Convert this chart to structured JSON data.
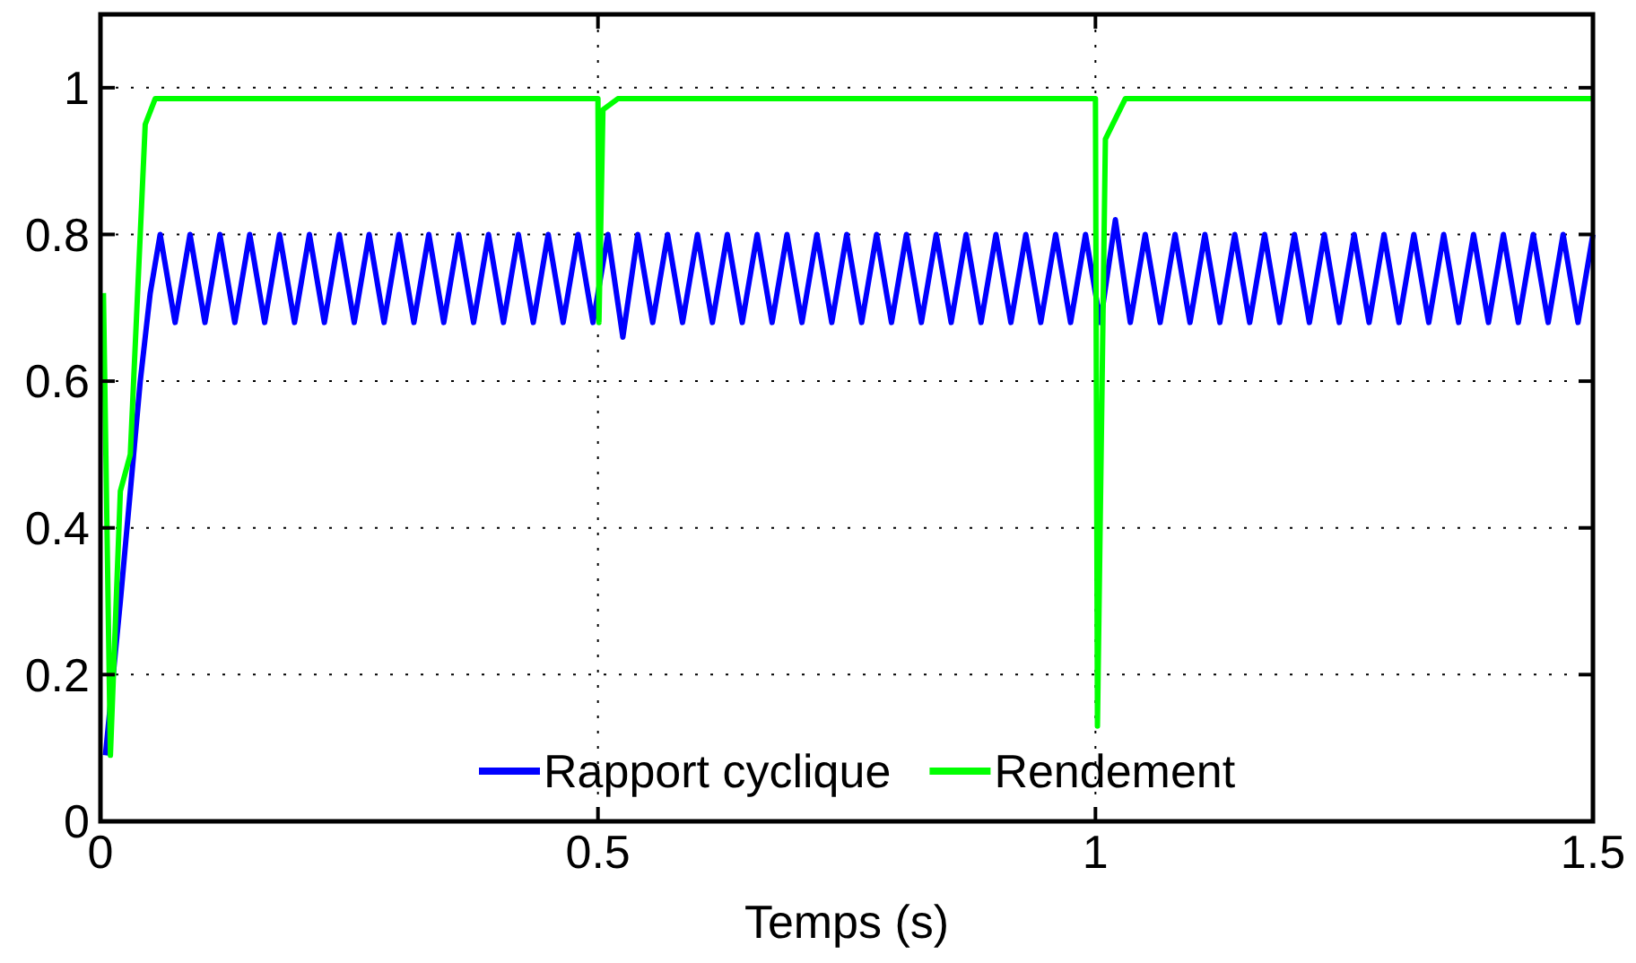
{
  "chart_data": {
    "type": "line",
    "xlabel": "Temps (s)",
    "xlim": [
      0,
      1.5
    ],
    "xticks": [
      0,
      0.5,
      1,
      1.5
    ],
    "ylim": [
      0,
      1.1
    ],
    "yticks": [
      0,
      0.2,
      0.4,
      0.6,
      0.8,
      1
    ],
    "grid": true,
    "legend": "bottom",
    "line_style": "solid",
    "series": [
      {
        "name": "Rapport cyclique",
        "color": "#0000ff",
        "x": [
          0.005,
          0.02,
          0.04,
          0.05,
          0.06,
          0.075,
          0.09,
          0.105,
          0.12,
          0.135,
          0.15,
          0.165,
          0.18,
          0.195,
          0.21,
          0.225,
          0.24,
          0.255,
          0.27,
          0.285,
          0.3,
          0.315,
          0.33,
          0.345,
          0.36,
          0.375,
          0.39,
          0.405,
          0.42,
          0.435,
          0.45,
          0.465,
          0.48,
          0.495,
          0.51,
          0.525,
          0.54,
          0.555,
          0.57,
          0.585,
          0.6,
          0.615,
          0.63,
          0.645,
          0.66,
          0.675,
          0.69,
          0.705,
          0.72,
          0.735,
          0.75,
          0.765,
          0.78,
          0.795,
          0.81,
          0.825,
          0.84,
          0.855,
          0.87,
          0.885,
          0.9,
          0.915,
          0.93,
          0.945,
          0.96,
          0.975,
          0.99,
          1.005,
          1.02,
          1.035,
          1.05,
          1.065,
          1.08,
          1.095,
          1.11,
          1.125,
          1.14,
          1.155,
          1.17,
          1.185,
          1.2,
          1.215,
          1.23,
          1.245,
          1.26,
          1.275,
          1.29,
          1.305,
          1.32,
          1.335,
          1.35,
          1.365,
          1.38,
          1.395,
          1.41,
          1.425,
          1.44,
          1.455,
          1.47,
          1.485,
          1.5
        ],
        "values": [
          0.09,
          0.3,
          0.6,
          0.72,
          0.8,
          0.68,
          0.8,
          0.68,
          0.8,
          0.68,
          0.8,
          0.68,
          0.8,
          0.68,
          0.8,
          0.68,
          0.8,
          0.68,
          0.8,
          0.68,
          0.8,
          0.68,
          0.8,
          0.68,
          0.8,
          0.68,
          0.8,
          0.68,
          0.8,
          0.68,
          0.8,
          0.68,
          0.8,
          0.68,
          0.8,
          0.66,
          0.8,
          0.68,
          0.8,
          0.68,
          0.8,
          0.68,
          0.8,
          0.68,
          0.8,
          0.68,
          0.8,
          0.68,
          0.8,
          0.68,
          0.8,
          0.68,
          0.8,
          0.68,
          0.8,
          0.68,
          0.8,
          0.68,
          0.8,
          0.68,
          0.8,
          0.68,
          0.8,
          0.68,
          0.8,
          0.68,
          0.8,
          0.68,
          0.82,
          0.68,
          0.8,
          0.68,
          0.8,
          0.68,
          0.8,
          0.68,
          0.8,
          0.68,
          0.8,
          0.68,
          0.8,
          0.68,
          0.8,
          0.68,
          0.8,
          0.68,
          0.8,
          0.68,
          0.8,
          0.68,
          0.8,
          0.68,
          0.8,
          0.68,
          0.8,
          0.68,
          0.8,
          0.68,
          0.8,
          0.68,
          0.8
        ]
      },
      {
        "name": "Rendement",
        "color": "#00ff00",
        "x": [
          0.003,
          0.01,
          0.02,
          0.03,
          0.045,
          0.055,
          0.5,
          0.501,
          0.505,
          0.52,
          1.0,
          1.002,
          1.01,
          1.03,
          1.5
        ],
        "values": [
          0.72,
          0.09,
          0.45,
          0.5,
          0.95,
          0.985,
          0.985,
          0.68,
          0.97,
          0.985,
          0.985,
          0.13,
          0.93,
          0.985,
          0.985
        ]
      }
    ]
  }
}
